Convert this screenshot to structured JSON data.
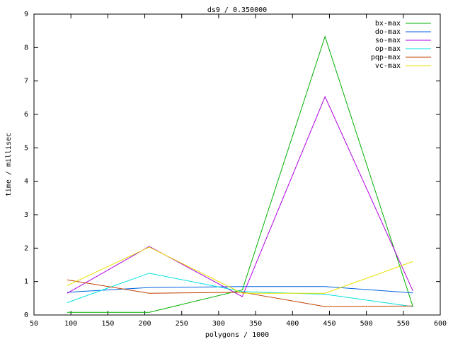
{
  "chart_data": {
    "type": "line",
    "title": "ds9 / 0.350000",
    "x_label": "polygons / 1000",
    "y_label": "time / millisec",
    "x": [
      95,
      206,
      332,
      444,
      563
    ],
    "series": [
      {
        "name": "bx-max",
        "color": "#00b000",
        "values": [
          0.08,
          0.08,
          0.75,
          8.33,
          0.25
        ]
      },
      {
        "name": "do-max",
        "color": "#0060e0",
        "values": [
          0.68,
          0.82,
          0.85,
          0.85,
          0.66
        ]
      },
      {
        "name": "so-max",
        "color": "#b000e0",
        "values": [
          0.65,
          2.05,
          0.55,
          6.53,
          0.72
        ]
      },
      {
        "name": "op-max",
        "color": "#00e0e0",
        "values": [
          0.37,
          1.25,
          0.7,
          0.62,
          0.25
        ]
      },
      {
        "name": "pqp-max",
        "color": "#c04000",
        "values": [
          1.05,
          0.65,
          0.68,
          0.25,
          0.27
        ]
      },
      {
        "name": "vc-max",
        "color": "#e8e000",
        "values": [
          0.88,
          2.03,
          0.65,
          0.65,
          1.6
        ]
      }
    ],
    "xlim": [
      50,
      600
    ],
    "xticks": [
      50,
      100,
      150,
      200,
      250,
      300,
      350,
      400,
      450,
      500,
      550,
      600
    ],
    "ylim": [
      0,
      9
    ],
    "yticks": [
      0,
      1,
      2,
      3,
      4,
      5,
      6,
      7,
      8,
      9
    ],
    "grid": false,
    "legend": "top-right"
  }
}
